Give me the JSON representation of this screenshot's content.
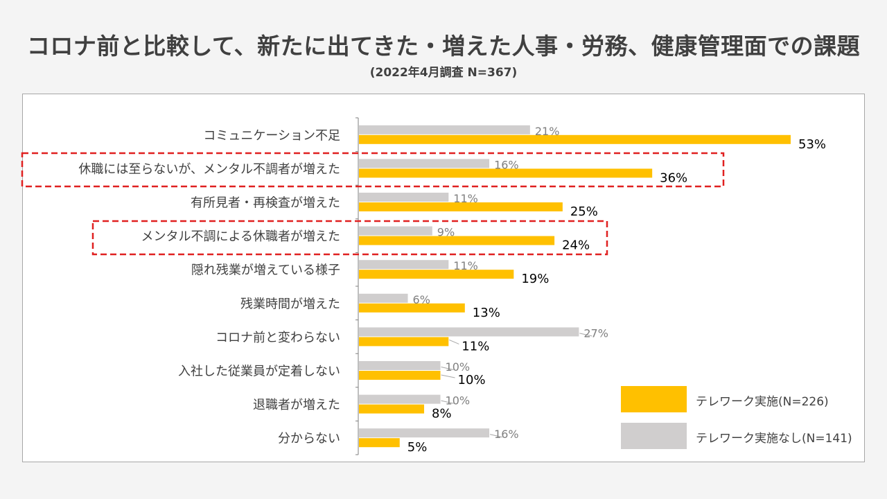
{
  "title": "コロナ前と比較して、新たに出てきた・増えた人事・労務、健康管理面での課題",
  "subtitle": "(2022年4月調査  N=367)",
  "colors": {
    "telework": "#ffc000",
    "no_telework": "#d0cece",
    "highlight": "#e02020"
  },
  "legend": [
    {
      "label": "テレワーク実施(N=226)",
      "color": "#ffc000"
    },
    {
      "label": "テレワーク実施なし(N=141)",
      "color": "#d0cece"
    }
  ],
  "chart_data": {
    "type": "bar",
    "orientation": "horizontal",
    "categories": [
      "コミュニケーション不足",
      "休職には至らないが、メンタル不調者が増えた",
      "有所見者・再検査が増えた",
      "メンタル不調による休職者が増えた",
      "隠れ残業が増えている様子",
      "残業時間が増えた",
      "コロナ前と変わらない",
      "入社した従業員が定着しない",
      "退職者が増えた",
      "分からない"
    ],
    "series": [
      {
        "name": "テレワーク実施なし(N=141)",
        "values": [
          21,
          16,
          11,
          9,
          11,
          6,
          27,
          10,
          10,
          16
        ],
        "labels": [
          "21%",
          "16%",
          "11%",
          "9%",
          "11%",
          "6%",
          "27%",
          "10%",
          "10%",
          "16%"
        ]
      },
      {
        "name": "テレワーク実施(N=226)",
        "values": [
          53,
          36,
          25,
          24,
          19,
          13,
          11,
          10,
          8,
          5
        ],
        "labels": [
          "53%",
          "36%",
          "25%",
          "24%",
          "19%",
          "13%",
          "11%",
          "10%",
          "8%",
          "5%"
        ]
      }
    ],
    "highlighted_categories": [
      1,
      3
    ],
    "xlim": [
      0,
      60
    ],
    "grid": false
  }
}
